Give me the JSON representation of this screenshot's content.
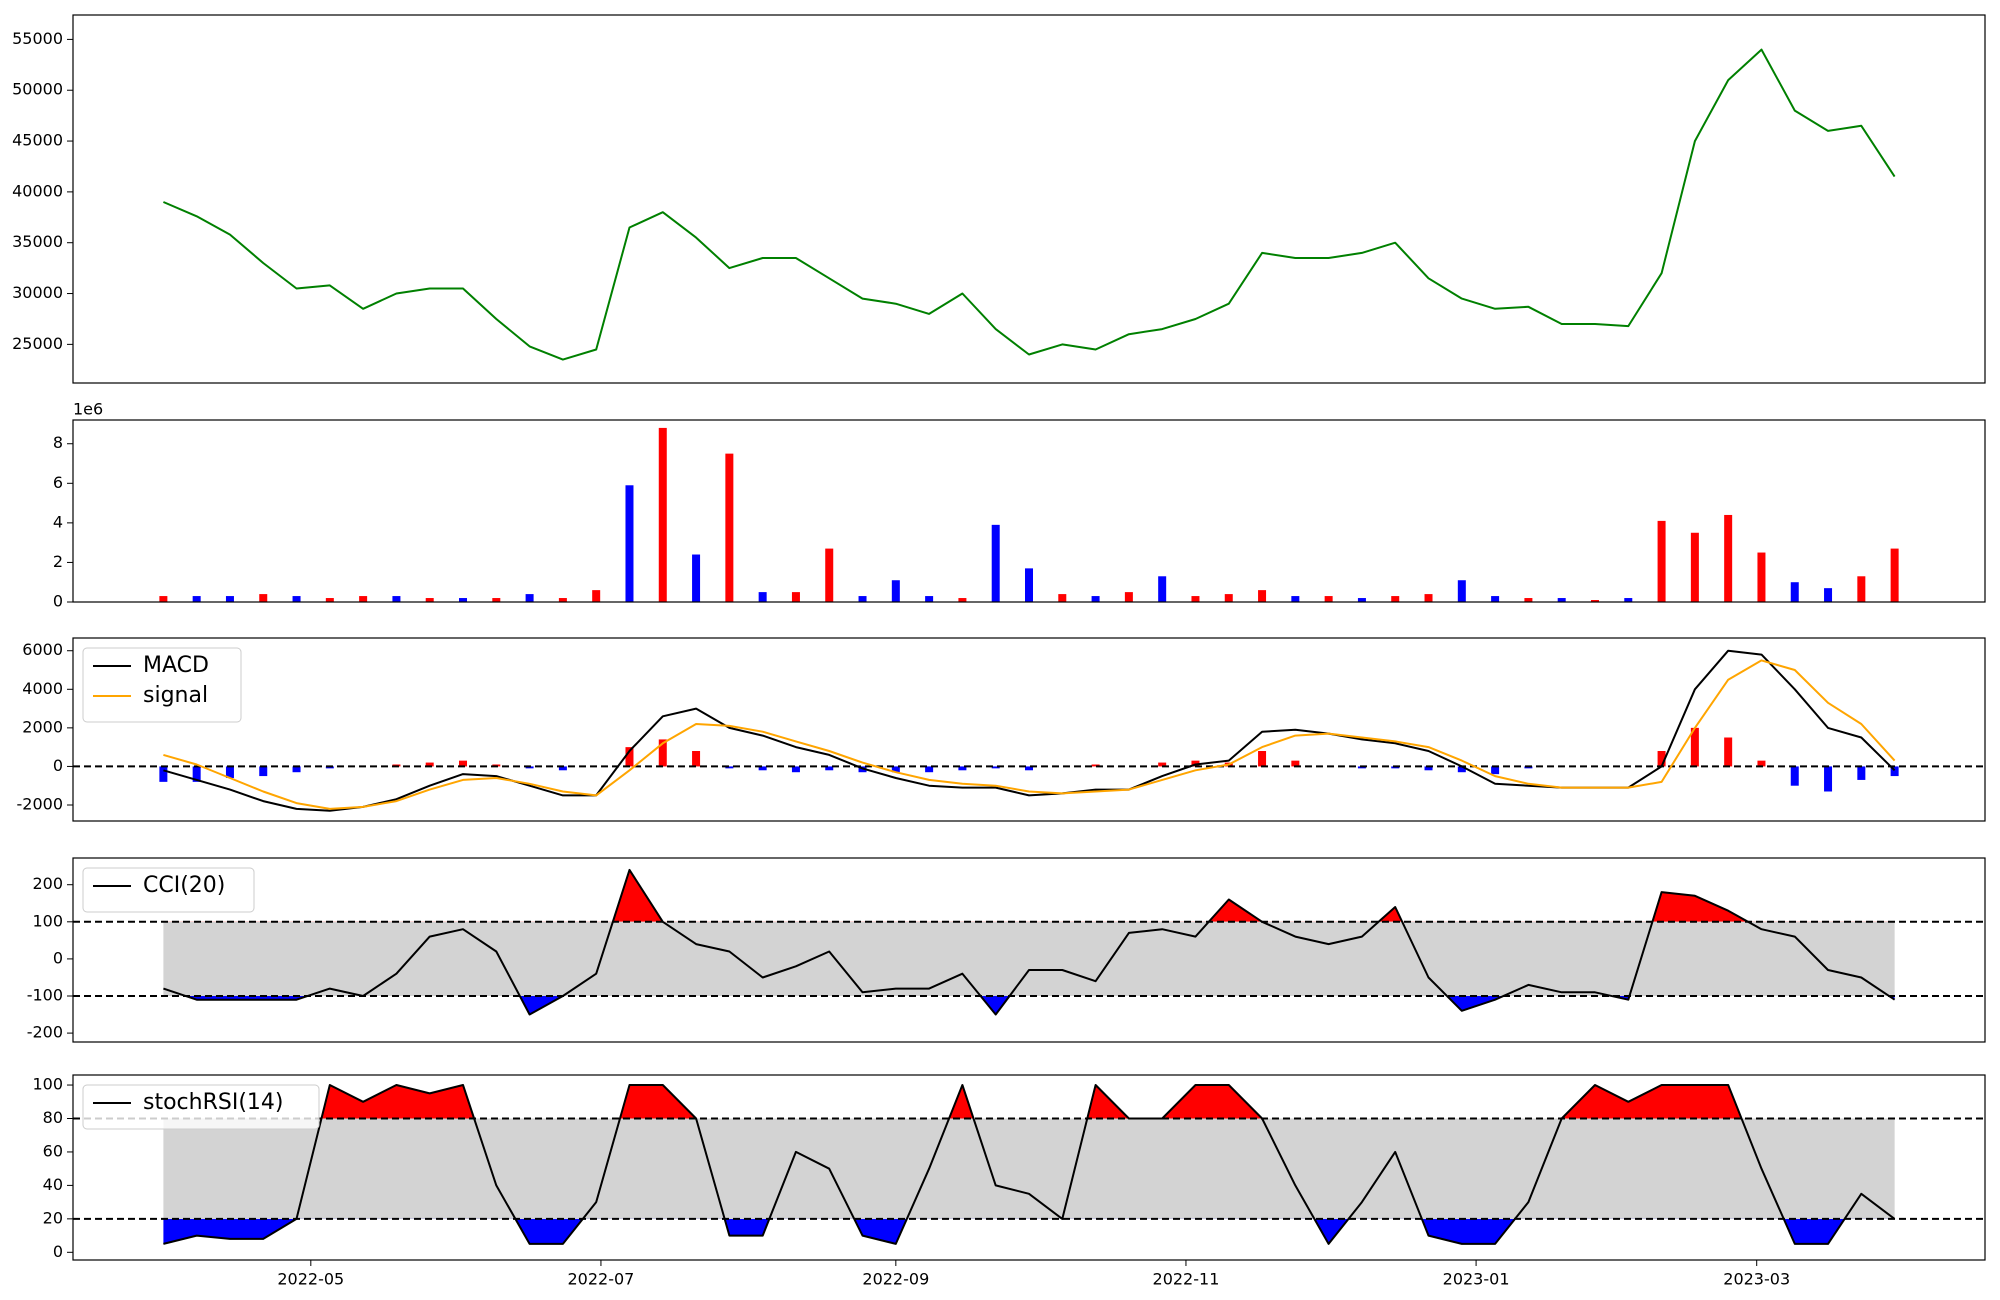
{
  "chart_data": [
    {
      "type": "line",
      "color": "#008000",
      "x": [
        "2022-03-31",
        "2022-04-07",
        "2022-04-14",
        "2022-04-21",
        "2022-04-28",
        "2022-05-05",
        "2022-05-12",
        "2022-05-19",
        "2022-05-26",
        "2022-06-02",
        "2022-06-09",
        "2022-06-16",
        "2022-06-23",
        "2022-06-30",
        "2022-07-07",
        "2022-07-14",
        "2022-07-21",
        "2022-07-28",
        "2022-08-04",
        "2022-08-11",
        "2022-08-18",
        "2022-08-25",
        "2022-09-01",
        "2022-09-08",
        "2022-09-15",
        "2022-09-22",
        "2022-09-29",
        "2022-10-06",
        "2022-10-13",
        "2022-10-20",
        "2022-10-27",
        "2022-11-03",
        "2022-11-10",
        "2022-11-17",
        "2022-11-24",
        "2022-12-01",
        "2022-12-08",
        "2022-12-15",
        "2022-12-22",
        "2022-12-29",
        "2023-01-05",
        "2023-01-12",
        "2023-01-19",
        "2023-01-26",
        "2023-02-02",
        "2023-02-09",
        "2023-02-16",
        "2023-02-23",
        "2023-03-02",
        "2023-03-09",
        "2023-03-16",
        "2023-03-23",
        "2023-03-30"
      ],
      "values": [
        39000,
        37600,
        35800,
        33000,
        30500,
        30800,
        28500,
        30000,
        30500,
        30500,
        27500,
        24800,
        23500,
        24500,
        36500,
        38000,
        35500,
        32500,
        33500,
        33500,
        31500,
        29500,
        29000,
        28000,
        30000,
        26500,
        24000,
        25000,
        24500,
        26000,
        26500,
        27500,
        29000,
        34000,
        33500,
        33500,
        34000,
        35000,
        31500,
        29500,
        28500,
        28700,
        27000,
        27000,
        26800,
        32000,
        45000,
        51000,
        54000,
        48000,
        46000,
        46500,
        41500
      ],
      "xlim": [
        "2022-03-12",
        "2023-04-18"
      ],
      "ylim": [
        21200,
        57400
      ],
      "yticks": [
        25000,
        30000,
        35000,
        40000,
        45000,
        50000,
        55000
      ]
    },
    {
      "type": "bar",
      "offset_text": "1e6",
      "x": [
        "2022-03-31",
        "2022-04-07",
        "2022-04-14",
        "2022-04-21",
        "2022-04-28",
        "2022-05-05",
        "2022-05-12",
        "2022-05-19",
        "2022-05-26",
        "2022-06-02",
        "2022-06-09",
        "2022-06-16",
        "2022-06-23",
        "2022-06-30",
        "2022-07-07",
        "2022-07-14",
        "2022-07-21",
        "2022-07-28",
        "2022-08-04",
        "2022-08-11",
        "2022-08-18",
        "2022-08-25",
        "2022-09-01",
        "2022-09-08",
        "2022-09-15",
        "2022-09-22",
        "2022-09-29",
        "2022-10-06",
        "2022-10-13",
        "2022-10-20",
        "2022-10-27",
        "2022-11-03",
        "2022-11-10",
        "2022-11-17",
        "2022-11-24",
        "2022-12-01",
        "2022-12-08",
        "2022-12-15",
        "2022-12-22",
        "2022-12-29",
        "2023-01-05",
        "2023-01-12",
        "2023-01-19",
        "2023-01-26",
        "2023-02-02",
        "2023-02-09",
        "2023-02-16",
        "2023-02-23",
        "2023-03-02",
        "2023-03-09",
        "2023-03-16",
        "2023-03-23",
        "2023-03-30"
      ],
      "values": [
        0.3,
        0.3,
        0.3,
        0.4,
        0.3,
        0.2,
        0.3,
        0.3,
        0.2,
        0.2,
        0.2,
        0.4,
        0.2,
        0.6,
        5.9,
        8.8,
        2.4,
        7.5,
        0.5,
        0.5,
        2.7,
        0.3,
        1.1,
        0.3,
        0.2,
        3.9,
        1.7,
        0.4,
        0.3,
        0.5,
        1.3,
        0.3,
        0.4,
        0.6,
        0.3,
        0.3,
        0.2,
        0.3,
        0.4,
        1.1,
        0.3,
        0.2,
        0.2,
        0.1,
        0.2,
        4.1,
        3.5,
        4.4,
        2.5,
        1.0,
        0.7,
        1.3,
        2.7
      ],
      "colors": [
        "#ff0000",
        "#0000ff",
        "#0000ff",
        "#ff0000",
        "#0000ff",
        "#ff0000",
        "#ff0000",
        "#0000ff",
        "#ff0000",
        "#0000ff",
        "#ff0000",
        "#0000ff",
        "#ff0000",
        "#ff0000",
        "#0000ff",
        "#ff0000",
        "#0000ff",
        "#ff0000",
        "#0000ff",
        "#ff0000",
        "#ff0000",
        "#0000ff",
        "#0000ff",
        "#0000ff",
        "#ff0000",
        "#0000ff",
        "#0000ff",
        "#ff0000",
        "#0000ff",
        "#ff0000",
        "#0000ff",
        "#ff0000",
        "#ff0000",
        "#ff0000",
        "#0000ff",
        "#ff0000",
        "#0000ff",
        "#ff0000",
        "#ff0000",
        "#0000ff",
        "#0000ff",
        "#ff0000",
        "#0000ff",
        "#ff0000",
        "#0000ff",
        "#ff0000",
        "#ff0000",
        "#ff0000",
        "#ff0000",
        "#0000ff",
        "#0000ff",
        "#ff0000",
        "#ff0000"
      ],
      "xlim": [
        "2022-03-12",
        "2023-04-18"
      ],
      "ylim": [
        0,
        9.2
      ],
      "yticks": [
        0,
        2,
        4,
        6,
        8
      ]
    },
    {
      "type": "macd",
      "legend": "upper left",
      "hline": 0,
      "x": [
        "2022-03-31",
        "2022-04-07",
        "2022-04-14",
        "2022-04-21",
        "2022-04-28",
        "2022-05-05",
        "2022-05-12",
        "2022-05-19",
        "2022-05-26",
        "2022-06-02",
        "2022-06-09",
        "2022-06-16",
        "2022-06-23",
        "2022-06-30",
        "2022-07-07",
        "2022-07-14",
        "2022-07-21",
        "2022-07-28",
        "2022-08-04",
        "2022-08-11",
        "2022-08-18",
        "2022-08-25",
        "2022-09-01",
        "2022-09-08",
        "2022-09-15",
        "2022-09-22",
        "2022-09-29",
        "2022-10-06",
        "2022-10-13",
        "2022-10-20",
        "2022-10-27",
        "2022-11-03",
        "2022-11-10",
        "2022-11-17",
        "2022-11-24",
        "2022-12-01",
        "2022-12-08",
        "2022-12-15",
        "2022-12-22",
        "2022-12-29",
        "2023-01-05",
        "2023-01-12",
        "2023-01-19",
        "2023-01-26",
        "2023-02-02",
        "2023-02-09",
        "2023-02-16",
        "2023-02-23",
        "2023-03-02",
        "2023-03-09",
        "2023-03-16",
        "2023-03-23",
        "2023-03-30"
      ],
      "series": [
        {
          "name": "MACD",
          "color": "#000000",
          "values": [
            -200,
            -700,
            -1200,
            -1800,
            -2200,
            -2300,
            -2100,
            -1700,
            -1000,
            -400,
            -500,
            -1000,
            -1500,
            -1500,
            800,
            2600,
            3000,
            2000,
            1600,
            1000,
            600,
            -100,
            -600,
            -1000,
            -1100,
            -1100,
            -1500,
            -1400,
            -1200,
            -1200,
            -500,
            100,
            300,
            1800,
            1900,
            1700,
            1400,
            1200,
            800,
            0,
            -900,
            -1000,
            -1100,
            -1100,
            -1100,
            0,
            4000,
            6000,
            5800,
            4000,
            2000,
            1500,
            -200
          ]
        },
        {
          "name": "signal",
          "color": "#ffa500",
          "values": [
            600,
            100,
            -600,
            -1300,
            -1900,
            -2200,
            -2100,
            -1800,
            -1200,
            -700,
            -600,
            -900,
            -1300,
            -1500,
            -200,
            1200,
            2200,
            2100,
            1800,
            1300,
            800,
            200,
            -300,
            -700,
            -900,
            -1000,
            -1300,
            -1400,
            -1300,
            -1200,
            -700,
            -200,
            100,
            1000,
            1600,
            1700,
            1500,
            1300,
            1000,
            300,
            -500,
            -900,
            -1100,
            -1100,
            -1100,
            -800,
            2000,
            4500,
            5500,
            5000,
            3300,
            2200,
            300
          ]
        }
      ],
      "histogram": {
        "values": [
          -800,
          -800,
          -600,
          -500,
          -300,
          -100,
          0,
          100,
          200,
          300,
          100,
          -100,
          -200,
          0,
          1000,
          1400,
          800,
          -100,
          -200,
          -300,
          -200,
          -300,
          -300,
          -300,
          -200,
          -100,
          -200,
          0,
          100,
          0,
          200,
          300,
          200,
          800,
          300,
          0,
          -100,
          -100,
          -200,
          -300,
          -400,
          -100,
          0,
          0,
          0,
          800,
          2000,
          1500,
          300,
          -1000,
          -1300,
          -700,
          -500
        ],
        "up_color": "#ff0000",
        "down_color": "#0000ff"
      },
      "xlim": [
        "2022-03-12",
        "2023-04-18"
      ],
      "ylim": [
        -2830,
        6660
      ],
      "yticks": [
        -2000,
        0,
        2000,
        4000,
        6000
      ]
    },
    {
      "type": "band_line",
      "legend": "upper left",
      "upper": 100,
      "lower": -100,
      "band_color": "#d3d3d3",
      "upper_color": "#ff0000",
      "lower_color": "#0000ff",
      "x": [
        "2022-03-31",
        "2022-04-07",
        "2022-04-14",
        "2022-04-21",
        "2022-04-28",
        "2022-05-05",
        "2022-05-12",
        "2022-05-19",
        "2022-05-26",
        "2022-06-02",
        "2022-06-09",
        "2022-06-16",
        "2022-06-23",
        "2022-06-30",
        "2022-07-07",
        "2022-07-14",
        "2022-07-21",
        "2022-07-28",
        "2022-08-04",
        "2022-08-11",
        "2022-08-18",
        "2022-08-25",
        "2022-09-01",
        "2022-09-08",
        "2022-09-15",
        "2022-09-22",
        "2022-09-29",
        "2022-10-06",
        "2022-10-13",
        "2022-10-20",
        "2022-10-27",
        "2022-11-03",
        "2022-11-10",
        "2022-11-17",
        "2022-11-24",
        "2022-12-01",
        "2022-12-08",
        "2022-12-15",
        "2022-12-22",
        "2022-12-29",
        "2023-01-05",
        "2023-01-12",
        "2023-01-19",
        "2023-01-26",
        "2023-02-02",
        "2023-02-09",
        "2023-02-16",
        "2023-02-23",
        "2023-03-02",
        "2023-03-09",
        "2023-03-16",
        "2023-03-23",
        "2023-03-30"
      ],
      "series": [
        {
          "name": "CCI(20)",
          "color": "#000000",
          "values": [
            -80,
            -110,
            -110,
            -110,
            -110,
            -80,
            -100,
            -40,
            60,
            80,
            20,
            -150,
            -100,
            -40,
            240,
            100,
            40,
            20,
            -50,
            -20,
            20,
            -90,
            -80,
            -80,
            -40,
            -150,
            -30,
            -30,
            -60,
            70,
            80,
            60,
            160,
            100,
            60,
            40,
            60,
            140,
            -50,
            -140,
            -110,
            -70,
            -90,
            -90,
            -110,
            180,
            170,
            130,
            80,
            60,
            -30,
            -50,
            -110
          ]
        }
      ],
      "xlim": [
        "2022-03-12",
        "2023-04-18"
      ],
      "ylim": [
        -224,
        272
      ],
      "yticks": [
        -200,
        -100,
        0,
        100,
        200
      ]
    },
    {
      "type": "band_line",
      "legend": "upper left",
      "upper": 80,
      "lower": 20,
      "band_color": "#d3d3d3",
      "upper_color": "#ff0000",
      "lower_color": "#0000ff",
      "x": [
        "2022-03-31",
        "2022-04-07",
        "2022-04-14",
        "2022-04-21",
        "2022-04-28",
        "2022-05-05",
        "2022-05-12",
        "2022-05-19",
        "2022-05-26",
        "2022-06-02",
        "2022-06-09",
        "2022-06-16",
        "2022-06-23",
        "2022-06-30",
        "2022-07-07",
        "2022-07-14",
        "2022-07-21",
        "2022-07-28",
        "2022-08-04",
        "2022-08-11",
        "2022-08-18",
        "2022-08-25",
        "2022-09-01",
        "2022-09-08",
        "2022-09-15",
        "2022-09-22",
        "2022-09-29",
        "2022-10-06",
        "2022-10-13",
        "2022-10-20",
        "2022-10-27",
        "2022-11-03",
        "2022-11-10",
        "2022-11-17",
        "2022-11-24",
        "2022-12-01",
        "2022-12-08",
        "2022-12-15",
        "2022-12-22",
        "2022-12-29",
        "2023-01-05",
        "2023-01-12",
        "2023-01-19",
        "2023-01-26",
        "2023-02-02",
        "2023-02-09",
        "2023-02-16",
        "2023-02-23",
        "2023-03-02",
        "2023-03-09",
        "2023-03-16",
        "2023-03-23",
        "2023-03-30"
      ],
      "series": [
        {
          "name": "stochRSI(14)",
          "color": "#000000",
          "values": [
            5,
            10,
            8,
            8,
            20,
            100,
            90,
            100,
            95,
            100,
            40,
            5,
            5,
            30,
            100,
            100,
            80,
            10,
            10,
            60,
            50,
            10,
            5,
            50,
            100,
            40,
            35,
            20,
            100,
            80,
            80,
            100,
            100,
            80,
            40,
            5,
            30,
            60,
            10,
            5,
            5,
            30,
            80,
            100,
            90,
            100,
            100,
            100,
            50,
            5,
            5,
            35,
            20
          ]
        }
      ],
      "xlim": [
        "2022-03-12",
        "2023-04-18"
      ],
      "ylim": [
        -4.6,
        106
      ],
      "yticks": [
        0,
        20,
        40,
        60,
        80,
        100
      ],
      "xticks": [
        {
          "value": "2022-05-01",
          "label": "2022-05"
        },
        {
          "value": "2022-07-01",
          "label": "2022-07"
        },
        {
          "value": "2022-09-01",
          "label": "2022-09"
        },
        {
          "value": "2022-11-01",
          "label": "2022-11"
        },
        {
          "value": "2023-01-01",
          "label": "2023-01"
        },
        {
          "value": "2023-03-01",
          "label": "2023-03"
        }
      ]
    }
  ]
}
